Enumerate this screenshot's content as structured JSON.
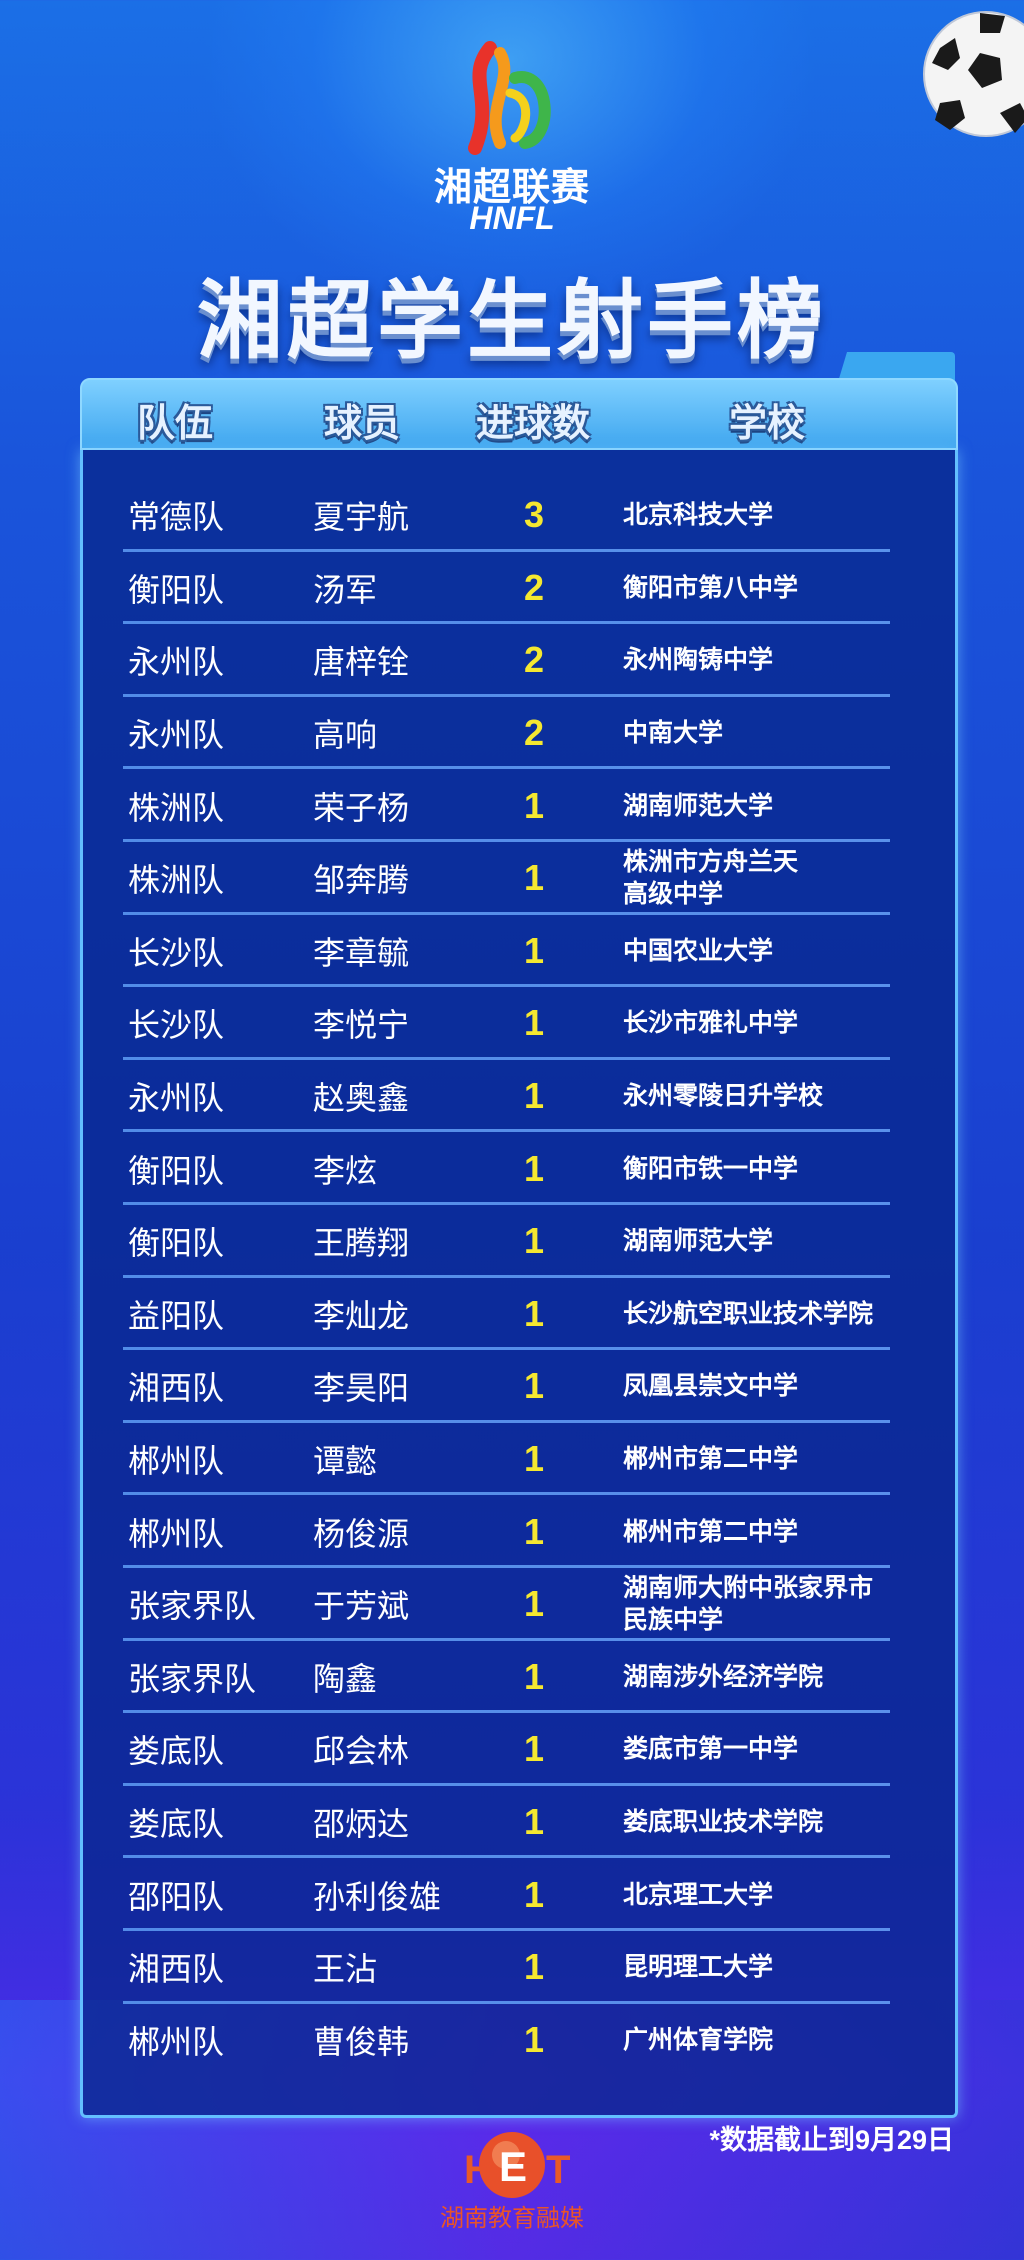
{
  "brand": {
    "name_cn": "湘超联赛",
    "name_en": "HNFL"
  },
  "title": "湘超学生射手榜",
  "columns": [
    "队伍",
    "球员",
    "进球数",
    "学校"
  ],
  "rows": [
    {
      "team": "常德队",
      "player": "夏宇航",
      "goals": "3",
      "school": "北京科技大学"
    },
    {
      "team": "衡阳队",
      "player": "汤军",
      "goals": "2",
      "school": "衡阳市第八中学"
    },
    {
      "team": "永州队",
      "player": "唐梓铨",
      "goals": "2",
      "school": "永州陶铸中学"
    },
    {
      "team": "永州队",
      "player": "高响",
      "goals": "2",
      "school": "中南大学"
    },
    {
      "team": "株洲队",
      "player": "荣子杨",
      "goals": "1",
      "school": "湖南师范大学"
    },
    {
      "team": "株洲队",
      "player": "邹奔腾",
      "goals": "1",
      "school": "株洲市方舟兰天\n高级中学"
    },
    {
      "team": "长沙队",
      "player": "李章毓",
      "goals": "1",
      "school": "中国农业大学"
    },
    {
      "team": "长沙队",
      "player": "李悦宁",
      "goals": "1",
      "school": "长沙市雅礼中学"
    },
    {
      "team": "永州队",
      "player": "赵奥鑫",
      "goals": "1",
      "school": "永州零陵日升学校"
    },
    {
      "team": "衡阳队",
      "player": "李炫",
      "goals": "1",
      "school": "衡阳市铁一中学"
    },
    {
      "team": "衡阳队",
      "player": "王腾翔",
      "goals": "1",
      "school": "湖南师范大学"
    },
    {
      "team": "益阳队",
      "player": "李灿龙",
      "goals": "1",
      "school": "长沙航空职业技术学院"
    },
    {
      "team": "湘西队",
      "player": "李昊阳",
      "goals": "1",
      "school": "凤凰县崇文中学"
    },
    {
      "team": "郴州队",
      "player": "谭懿",
      "goals": "1",
      "school": "郴州市第二中学"
    },
    {
      "team": "郴州队",
      "player": "杨俊源",
      "goals": "1",
      "school": "郴州市第二中学"
    },
    {
      "team": "张家界队",
      "player": "于芳斌",
      "goals": "1",
      "school": "湖南师大附中张家界市\n民族中学"
    },
    {
      "team": "张家界队",
      "player": "陶鑫",
      "goals": "1",
      "school": "湖南涉外经济学院"
    },
    {
      "team": "娄底队",
      "player": "邱会林",
      "goals": "1",
      "school": "娄底市第一中学"
    },
    {
      "team": "娄底队",
      "player": "邵炳达",
      "goals": "1",
      "school": "娄底职业技术学院"
    },
    {
      "team": "邵阳队",
      "player": "孙利俊雄",
      "goals": "1",
      "school": "北京理工大学"
    },
    {
      "team": "湘西队",
      "player": "王沾",
      "goals": "1",
      "school": "昆明理工大学"
    },
    {
      "team": "郴州队",
      "player": "曹俊韩",
      "goals": "1",
      "school": "广州体育学院"
    }
  ],
  "footnote": "*数据截止到9月29日",
  "publisher": {
    "logo_letters": "HET",
    "name": "湖南教育融媒"
  },
  "colors": {
    "goals": "#f5e830",
    "header": "#3fa6ef",
    "panel_border": "#63bfff",
    "publisher": "#e8542a"
  }
}
